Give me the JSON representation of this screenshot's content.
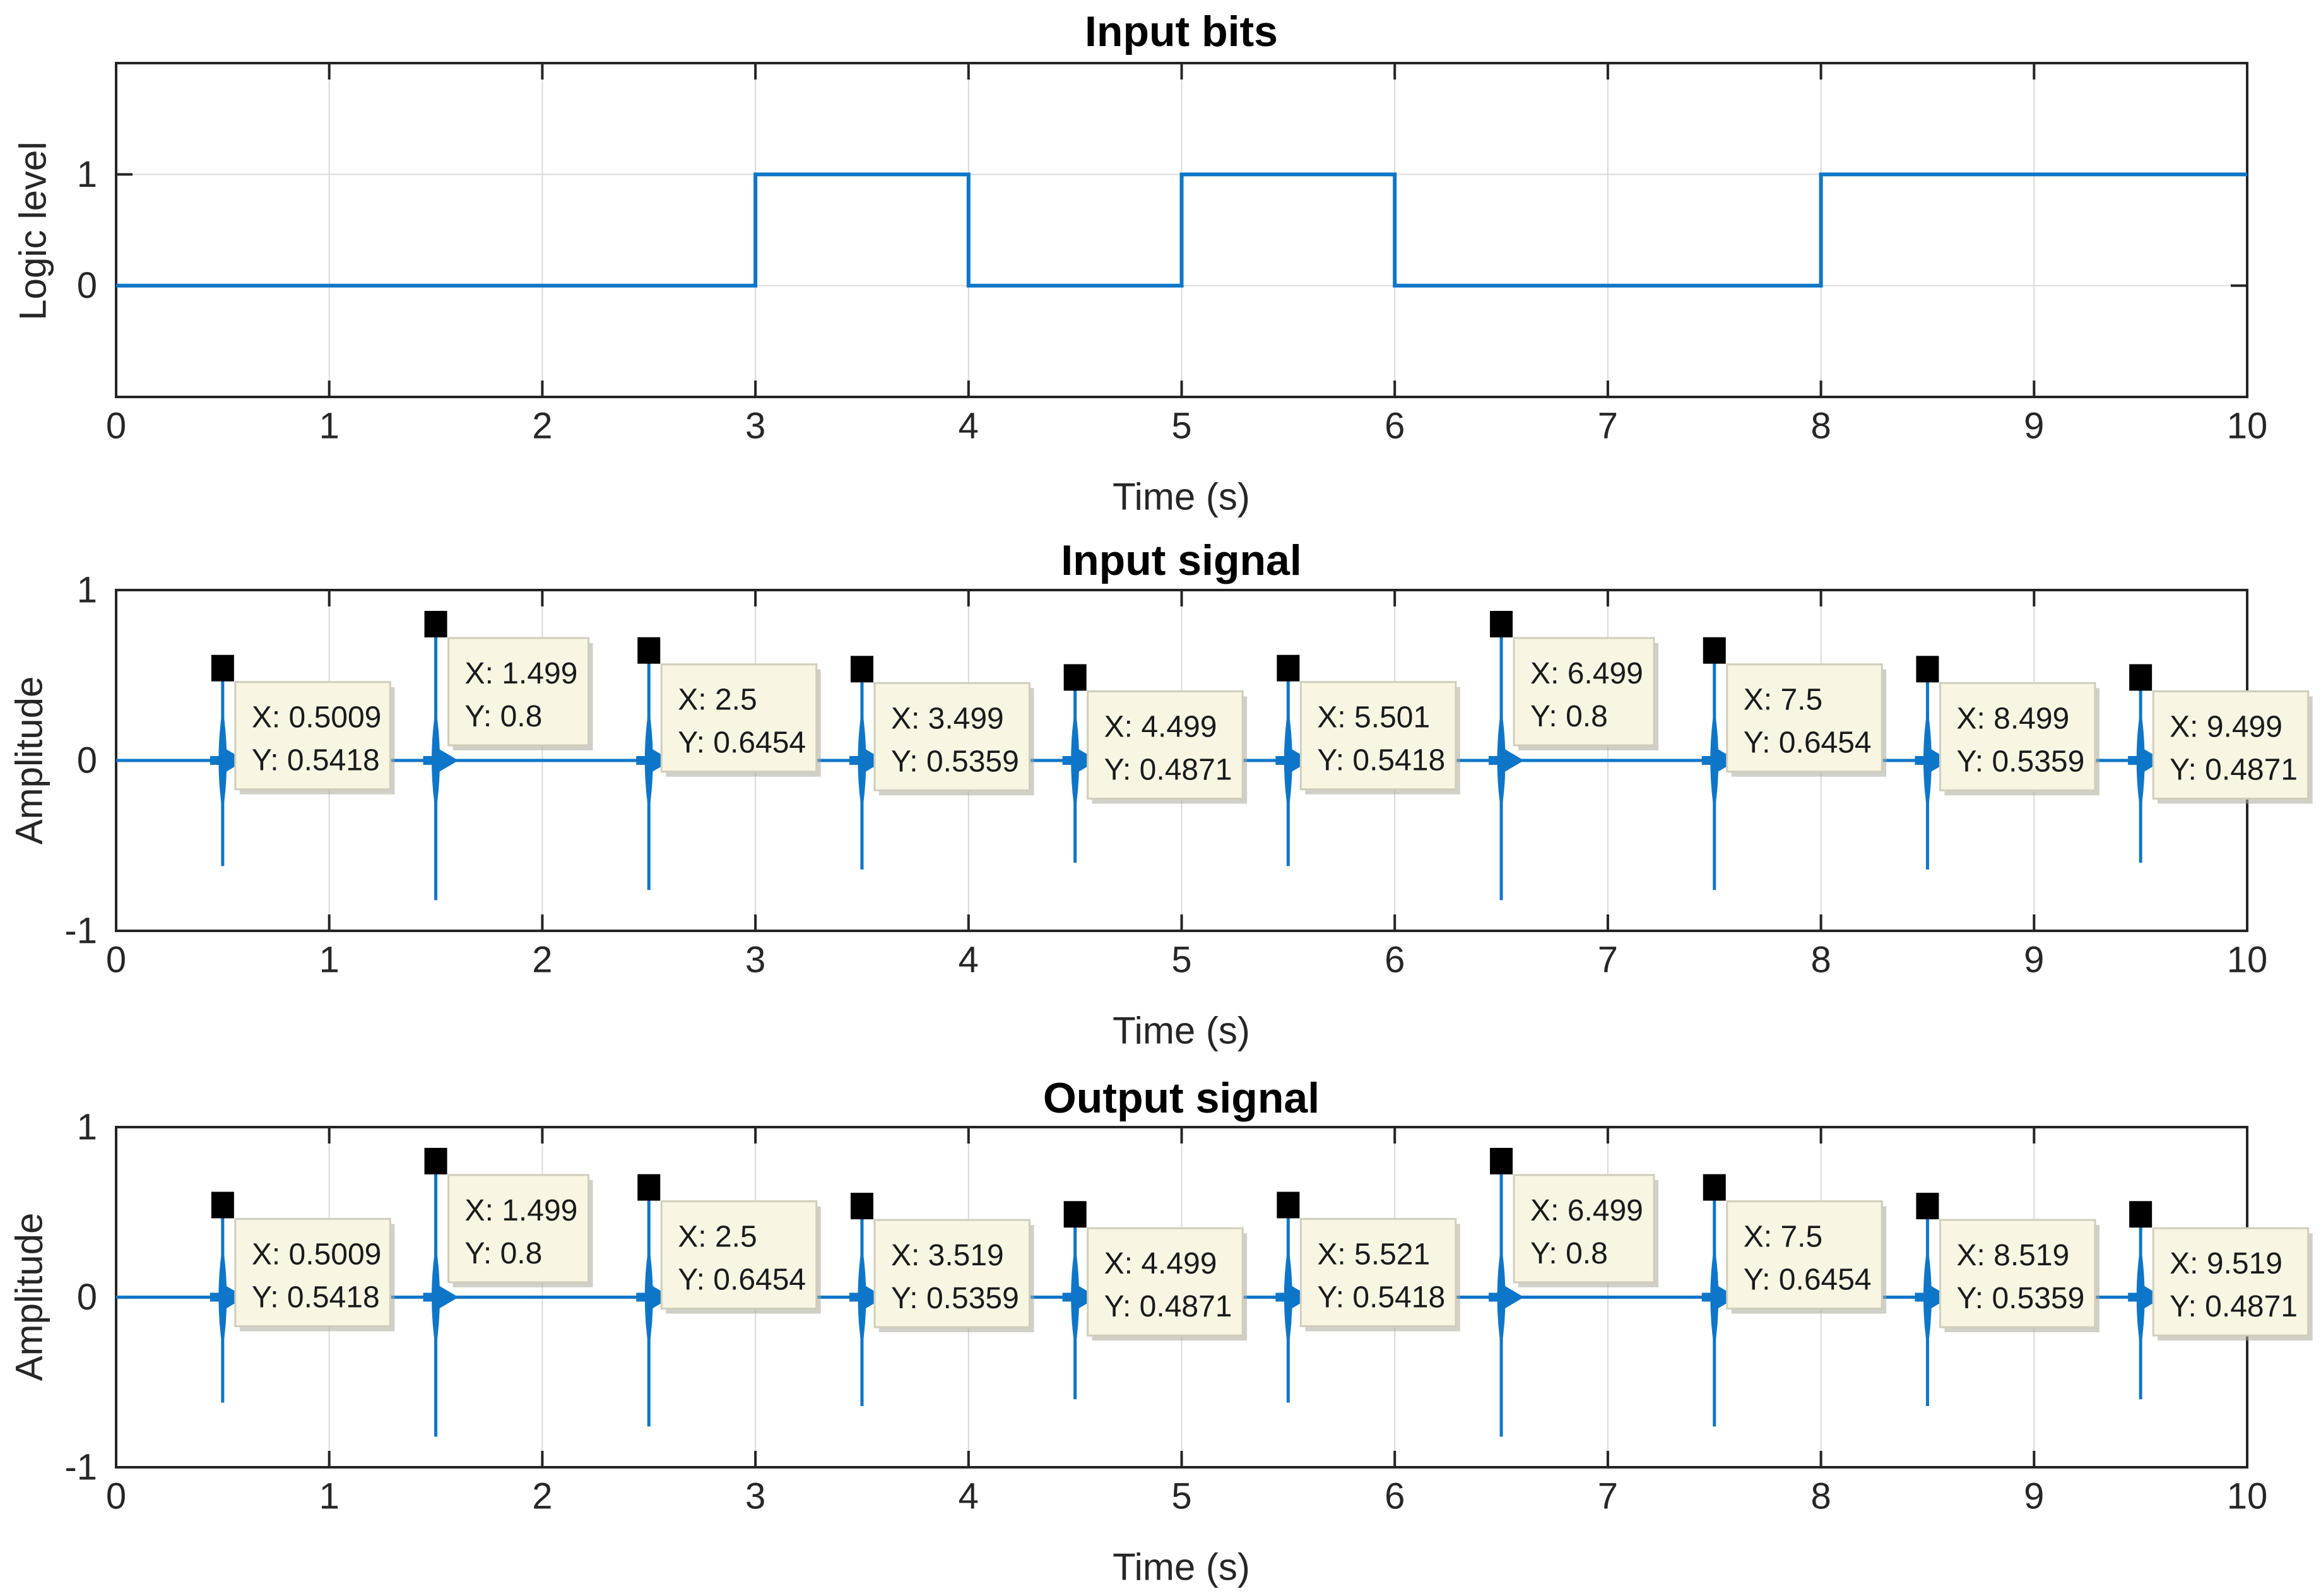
{
  "figure": {
    "background": "#ffffff"
  },
  "colors": {
    "signal_blue": "#0e76c8",
    "frame": "#242424",
    "grid": "#d9d9d9",
    "tick_text": "#262626",
    "datatip_bg": "#f8f6e3",
    "datatip_border": "#d0cebb",
    "datatip_shadow": "#a9a89b",
    "datatip_text": "#1a1a1a",
    "marker_black": "#000000"
  },
  "chart_data": [
    {
      "type": "line",
      "subtype": "square-wave",
      "title": "Input bits",
      "xlabel": "Time (s)",
      "ylabel": "Logic level",
      "xlim": [
        0,
        10
      ],
      "ylim": [
        -1,
        2
      ],
      "xticks": [
        0,
        1,
        2,
        3,
        4,
        5,
        6,
        7,
        8,
        9,
        10
      ],
      "yticks": [
        0,
        1
      ],
      "grid": "on",
      "legend": "none",
      "bits": [
        0,
        0,
        0,
        1,
        0,
        1,
        0,
        0,
        1,
        1
      ],
      "step_t": [
        0,
        3,
        4,
        5,
        6,
        8,
        10
      ],
      "step_v": [
        0,
        1,
        0,
        1,
        0,
        1
      ]
    },
    {
      "type": "line",
      "subtype": "impulse-train",
      "title": "Input signal",
      "xlabel": "Time (s)",
      "ylabel": "Amplitude",
      "xlim": [
        0,
        10
      ],
      "ylim": [
        -1,
        1
      ],
      "xticks": [
        0,
        1,
        2,
        3,
        4,
        5,
        6,
        7,
        8,
        9,
        10
      ],
      "yticks": [
        -1,
        0,
        1
      ],
      "grid": "on",
      "legend": "none",
      "spikes": {
        "x": [
          0.5,
          1.5,
          2.5,
          3.5,
          4.5,
          5.5,
          6.5,
          7.5,
          8.5,
          9.5
        ],
        "peak": [
          0.5418,
          0.8,
          0.6454,
          0.5359,
          0.4871,
          0.5418,
          0.8,
          0.6454,
          0.5359,
          0.4871
        ],
        "trough": [
          -0.62,
          -0.82,
          -0.76,
          -0.64,
          -0.6,
          -0.62,
          -0.82,
          -0.76,
          -0.64,
          -0.6
        ]
      },
      "datatips": [
        {
          "x_label": "X: 0.5009",
          "y_label": "Y: 0.5418"
        },
        {
          "x_label": "X: 1.499",
          "y_label": "Y: 0.8"
        },
        {
          "x_label": "X: 2.5",
          "y_label": "Y: 0.6454"
        },
        {
          "x_label": "X: 3.499",
          "y_label": "Y: 0.5359"
        },
        {
          "x_label": "X: 4.499",
          "y_label": "Y: 0.4871"
        },
        {
          "x_label": "X: 5.501",
          "y_label": "Y: 0.5418"
        },
        {
          "x_label": "X: 6.499",
          "y_label": "Y: 0.8"
        },
        {
          "x_label": "X: 7.5",
          "y_label": "Y: 0.6454"
        },
        {
          "x_label": "X: 8.499",
          "y_label": "Y: 0.5359"
        },
        {
          "x_label": "X: 9.499",
          "y_label": "Y: 0.4871"
        }
      ]
    },
    {
      "type": "line",
      "subtype": "impulse-train",
      "title": "Output signal",
      "xlabel": "Time (s)",
      "ylabel": "Amplitude",
      "xlim": [
        0,
        10
      ],
      "ylim": [
        -1,
        1
      ],
      "xticks": [
        0,
        1,
        2,
        3,
        4,
        5,
        6,
        7,
        8,
        9,
        10
      ],
      "yticks": [
        -1,
        0,
        1
      ],
      "grid": "on",
      "legend": "none",
      "spikes": {
        "x": [
          0.5,
          1.5,
          2.5,
          3.5,
          4.5,
          5.5,
          6.5,
          7.5,
          8.5,
          9.5
        ],
        "peak": [
          0.5418,
          0.8,
          0.6454,
          0.5359,
          0.4871,
          0.5418,
          0.8,
          0.6454,
          0.5359,
          0.4871
        ],
        "trough": [
          -0.62,
          -0.82,
          -0.76,
          -0.64,
          -0.6,
          -0.62,
          -0.82,
          -0.76,
          -0.64,
          -0.6
        ]
      },
      "datatips": [
        {
          "x_label": "X: 0.5009",
          "y_label": "Y: 0.5418"
        },
        {
          "x_label": "X: 1.499",
          "y_label": "Y: 0.8"
        },
        {
          "x_label": "X: 2.5",
          "y_label": "Y: 0.6454"
        },
        {
          "x_label": "X: 3.519",
          "y_label": "Y: 0.5359"
        },
        {
          "x_label": "X: 4.499",
          "y_label": "Y: 0.4871"
        },
        {
          "x_label": "X: 5.521",
          "y_label": "Y: 0.5418"
        },
        {
          "x_label": "X: 6.499",
          "y_label": "Y: 0.8"
        },
        {
          "x_label": "X: 7.5",
          "y_label": "Y: 0.6454"
        },
        {
          "x_label": "X: 8.519",
          "y_label": "Y: 0.5359"
        },
        {
          "x_label": "X: 9.519",
          "y_label": "Y: 0.4871"
        }
      ]
    }
  ]
}
